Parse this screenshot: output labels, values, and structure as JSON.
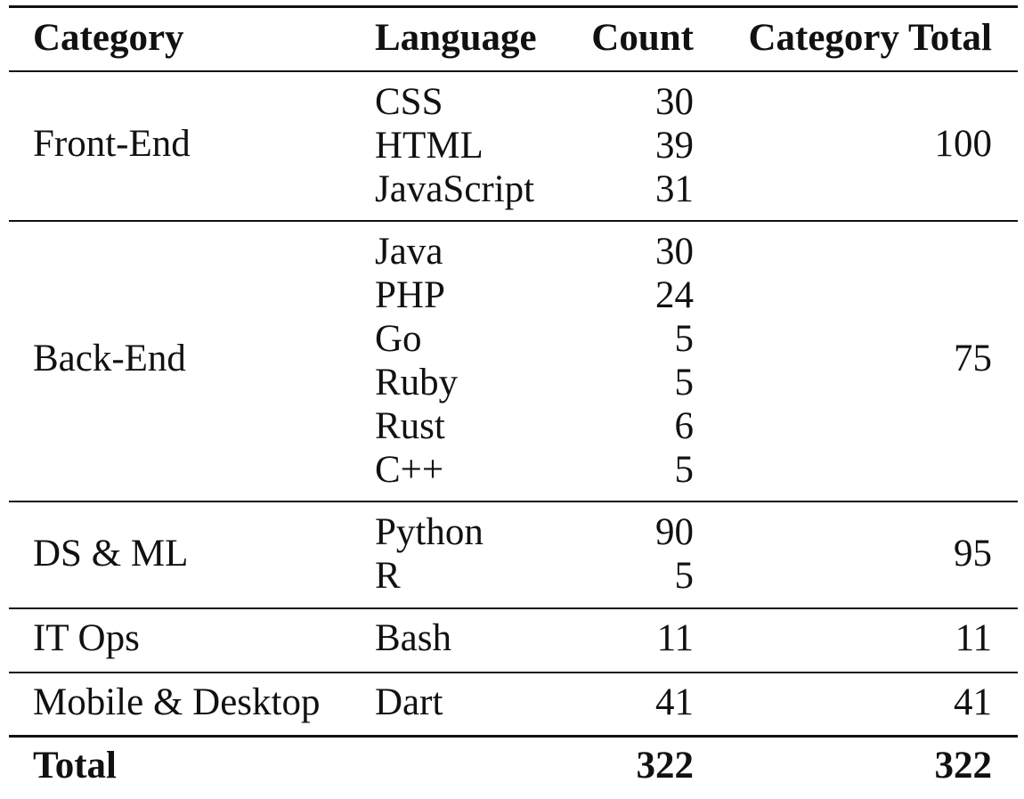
{
  "headers": {
    "category": "Category",
    "language": "Language",
    "count": "Count",
    "category_total": "Category Total"
  },
  "groups": [
    {
      "category": "Front-End",
      "languages": [
        {
          "name": "CSS",
          "count": "30"
        },
        {
          "name": "HTML",
          "count": "39"
        },
        {
          "name": "JavaScript",
          "count": "31"
        }
      ],
      "total": "100"
    },
    {
      "category": "Back-End",
      "languages": [
        {
          "name": "Java",
          "count": "30"
        },
        {
          "name": "PHP",
          "count": "24"
        },
        {
          "name": "Go",
          "count": "5"
        },
        {
          "name": "Ruby",
          "count": "5"
        },
        {
          "name": "Rust",
          "count": "6"
        },
        {
          "name": "C++",
          "count": "5"
        }
      ],
      "total": "75"
    },
    {
      "category": "DS & ML",
      "languages": [
        {
          "name": "Python",
          "count": "90"
        },
        {
          "name": "R",
          "count": "5"
        }
      ],
      "total": "95"
    },
    {
      "category": "IT Ops",
      "languages": [
        {
          "name": "Bash",
          "count": "11"
        }
      ],
      "total": "11"
    },
    {
      "category": "Mobile & Desktop",
      "languages": [
        {
          "name": "Dart",
          "count": "41"
        }
      ],
      "total": "41"
    }
  ],
  "footer": {
    "label": "Total",
    "count": "322",
    "total": "322"
  }
}
